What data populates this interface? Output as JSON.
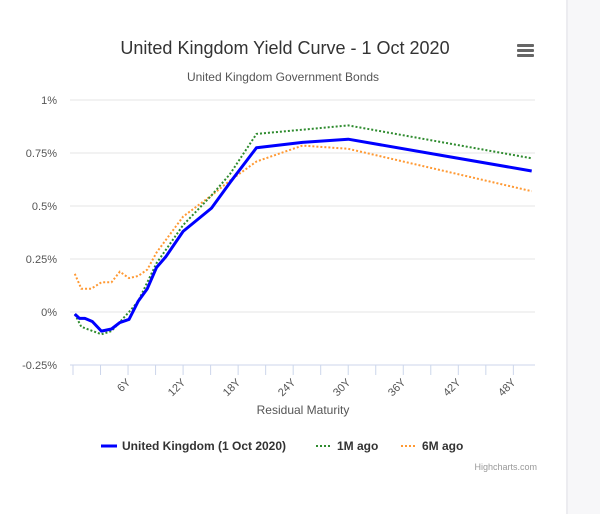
{
  "chart_data": {
    "type": "line",
    "title": "United Kingdom Yield Curve - 1 Oct 2020",
    "subtitle": "United Kingdom Government Bonds",
    "xlabel": "Residual Maturity",
    "ylabel": "",
    "xlim": [
      0,
      50
    ],
    "ylim": [
      -0.25,
      1
    ],
    "x_ticks": [
      6,
      12,
      18,
      24,
      30,
      36,
      42,
      48
    ],
    "x_tick_labels": [
      "6Y",
      "12Y",
      "18Y",
      "24Y",
      "30Y",
      "36Y",
      "42Y",
      "48Y"
    ],
    "y_ticks": [
      -0.25,
      0,
      0.25,
      0.5,
      0.75,
      1
    ],
    "y_tick_labels": [
      "-0.25%",
      "0%",
      "0.25%",
      "0.5%",
      "0.75%",
      "1%"
    ],
    "grid": true,
    "legend": "bottom",
    "series": [
      {
        "name": "United Kingdom (1 Oct 2020)",
        "color": "#0000ff",
        "style": "solid",
        "x": [
          0.2,
          0.7,
          1.3,
          2.1,
          3.1,
          4.2,
          5.1,
          6.1,
          7.1,
          8.1,
          9.1,
          10.1,
          12,
          15.1,
          17.1,
          20,
          25,
          30,
          40,
          50
        ],
        "y": [
          -0.01,
          -0.03,
          -0.03,
          -0.045,
          -0.09,
          -0.08,
          -0.05,
          -0.035,
          0.05,
          0.11,
          0.21,
          0.26,
          0.38,
          0.49,
          0.61,
          0.775,
          0.8,
          0.815,
          0.74,
          0.665
        ]
      },
      {
        "name": "1M ago",
        "color": "#2e8b2e",
        "style": "dotted",
        "x": [
          0.2,
          0.9,
          3.1,
          4.2,
          6.1,
          7.1,
          9.1,
          12,
          15.1,
          17.1,
          20,
          25,
          30,
          50
        ],
        "y": [
          -0.01,
          -0.07,
          -0.105,
          -0.09,
          0.0,
          0.05,
          0.23,
          0.41,
          0.55,
          0.65,
          0.84,
          0.86,
          0.88,
          0.725
        ]
      },
      {
        "name": "6M ago",
        "color": "#ff9933",
        "style": "dotted",
        "x": [
          0.2,
          0.9,
          2.0,
          3.1,
          4.2,
          5.1,
          6.1,
          7.1,
          8.1,
          9.1,
          12,
          15.1,
          17.1,
          20,
          25,
          30,
          50
        ],
        "y": [
          0.18,
          0.11,
          0.11,
          0.14,
          0.14,
          0.19,
          0.16,
          0.17,
          0.2,
          0.28,
          0.45,
          0.55,
          0.62,
          0.71,
          0.785,
          0.77,
          0.57
        ]
      }
    ]
  },
  "credit": "Highcharts.com",
  "menu_icon": "hamburger-menu-icon"
}
